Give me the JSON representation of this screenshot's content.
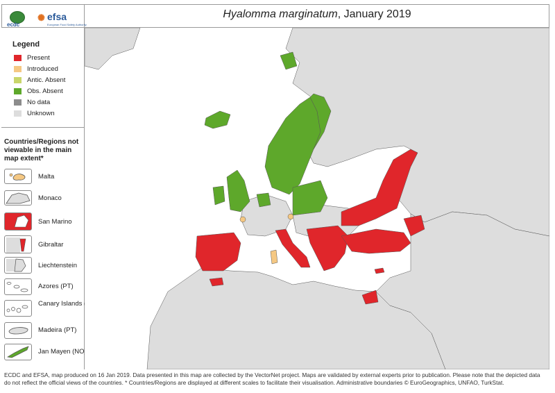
{
  "header": {
    "title_italic": "Hyalomma marginatum",
    "title_rest": ", January 2019",
    "ecdc_logo_text": "ecdc",
    "efsa_logo_text": "efsa",
    "efsa_logo_sub": "European Food Safety Authority"
  },
  "legend": {
    "title": "Legend",
    "items": [
      {
        "label": "Present",
        "color": "#e0262b"
      },
      {
        "label": "Introduced",
        "color": "#f5c883"
      },
      {
        "label": "Antic. Absent",
        "color": "#c9d66b"
      },
      {
        "label": "Obs. Absent",
        "color": "#5ea82b"
      },
      {
        "label": "No data",
        "color": "#8c8c8c"
      },
      {
        "label": "Unknown",
        "color": "#dddddd"
      }
    ]
  },
  "not_viewable": {
    "title": "Countries/Regions not viewable in the main map extent*",
    "items": [
      {
        "label": "Malta",
        "status_color": "#f5c883"
      },
      {
        "label": "Monaco",
        "status_color": "#dddddd"
      },
      {
        "label": "San Marino",
        "status_color": "#e0262b"
      },
      {
        "label": "Gibraltar",
        "status_color": "#e0262b"
      },
      {
        "label": "Liechtenstein",
        "status_color": "#dddddd"
      },
      {
        "label": "Azores (PT)",
        "status_color": "#ffffff"
      },
      {
        "label": "Canary Islands (ES)",
        "status_color": "#ffffff"
      },
      {
        "label": "Madeira (PT)",
        "status_color": "#dddddd"
      },
      {
        "label": "Jan Mayen (NO)",
        "status_color": "#5ea82b"
      }
    ]
  },
  "footer": {
    "line1": "ECDC and EFSA, map produced on 16 Jan 2019. Data presented in this map are collected by the VectorNet project. Maps are validated by external experts prior to publication. Please note that the depicted data",
    "line2": "do not reflect the official views of the countries. * Countries/Regions are displayed at different scales to facilitate their visualisation. Administrative boundaries © EuroGeographics, UNFAO, TurkStat."
  },
  "map": {
    "sea_color": "#ffffff",
    "land_color": "#dddddd",
    "border_color": "#555555"
  }
}
